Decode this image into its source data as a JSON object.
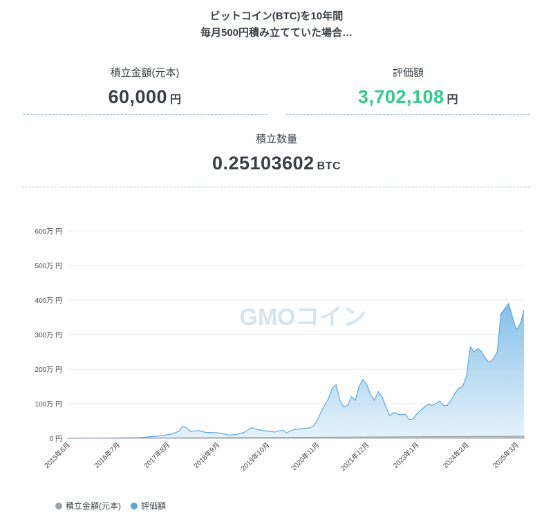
{
  "headline": {
    "line1": "ビットコイン(BTC)を10年間",
    "line2": "毎月500円積み立てていた場合…"
  },
  "stats": {
    "principal": {
      "label": "積立金額(元本)",
      "value": "60,000",
      "unit": "円"
    },
    "valuation": {
      "label": "評価額",
      "value": "3,702,108",
      "unit": "円"
    },
    "quantity": {
      "label": "積立数量",
      "value": "0.25103602",
      "unit": "BTC"
    }
  },
  "watermark": "GMOコイン",
  "colors": {
    "principal": "#9aa3ab",
    "valuation": "#5aa7e0",
    "valuation_fill_top": "#7fbde9",
    "valuation_fill_bottom": "#e3f0fa",
    "highlight": "#2ecc8a"
  },
  "chart_data": {
    "type": "area",
    "title": "",
    "xlabel": "",
    "ylabel": "",
    "ylim": [
      0,
      6000000
    ],
    "y_ticks": [
      {
        "value": 0,
        "label": "0 円"
      },
      {
        "value": 1000000,
        "label": "100万 円"
      },
      {
        "value": 2000000,
        "label": "200万 円"
      },
      {
        "value": 3000000,
        "label": "300万 円"
      },
      {
        "value": 4000000,
        "label": "400万 円"
      },
      {
        "value": 5000000,
        "label": "500万 円"
      },
      {
        "value": 6000000,
        "label": "600万 円"
      }
    ],
    "x_range": [
      "2015-06",
      "2025-05"
    ],
    "x_ticks": [
      {
        "date": "2015-06",
        "label": "2015年6月"
      },
      {
        "date": "2016-07",
        "label": "2016年7月"
      },
      {
        "date": "2017-08",
        "label": "2017年8月"
      },
      {
        "date": "2018-09",
        "label": "2018年9月"
      },
      {
        "date": "2019-10",
        "label": "2019年10月"
      },
      {
        "date": "2020-11",
        "label": "2020年11月"
      },
      {
        "date": "2021-12",
        "label": "2021年12月"
      },
      {
        "date": "2023-01",
        "label": "2023年1月"
      },
      {
        "date": "2024-02",
        "label": "2024年2月"
      },
      {
        "date": "2025-03",
        "label": "2025年3月"
      }
    ],
    "grid": true,
    "legend_position": "bottom-left",
    "series": [
      {
        "name": "積立金額(元本)",
        "points": [
          [
            "2015-06",
            500
          ],
          [
            "2025-05",
            60000
          ]
        ]
      },
      {
        "name": "評価額",
        "points": [
          [
            "2015-06",
            500
          ],
          [
            "2016-01",
            4000
          ],
          [
            "2016-07",
            10000
          ],
          [
            "2017-01",
            20000
          ],
          [
            "2017-06",
            70000
          ],
          [
            "2017-09",
            120000
          ],
          [
            "2017-11",
            200000
          ],
          [
            "2017-12",
            350000
          ],
          [
            "2018-01",
            300000
          ],
          [
            "2018-02",
            200000
          ],
          [
            "2018-04",
            220000
          ],
          [
            "2018-06",
            170000
          ],
          [
            "2018-09",
            160000
          ],
          [
            "2018-11",
            120000
          ],
          [
            "2018-12",
            90000
          ],
          [
            "2019-02",
            110000
          ],
          [
            "2019-04",
            170000
          ],
          [
            "2019-06",
            310000
          ],
          [
            "2019-07",
            270000
          ],
          [
            "2019-09",
            220000
          ],
          [
            "2019-10",
            210000
          ],
          [
            "2019-12",
            180000
          ],
          [
            "2020-02",
            240000
          ],
          [
            "2020-03",
            160000
          ],
          [
            "2020-05",
            250000
          ],
          [
            "2020-07",
            280000
          ],
          [
            "2020-09",
            300000
          ],
          [
            "2020-10",
            350000
          ],
          [
            "2020-11",
            500000
          ],
          [
            "2020-12",
            750000
          ],
          [
            "2021-01",
            950000
          ],
          [
            "2021-02",
            1150000
          ],
          [
            "2021-03",
            1450000
          ],
          [
            "2021-04",
            1550000
          ],
          [
            "2021-05",
            1100000
          ],
          [
            "2021-06",
            900000
          ],
          [
            "2021-07",
            950000
          ],
          [
            "2021-08",
            1200000
          ],
          [
            "2021-09",
            1100000
          ],
          [
            "2021-10",
            1500000
          ],
          [
            "2021-11",
            1700000
          ],
          [
            "2021-12",
            1550000
          ],
          [
            "2022-01",
            1250000
          ],
          [
            "2022-02",
            1100000
          ],
          [
            "2022-03",
            1350000
          ],
          [
            "2022-04",
            1200000
          ],
          [
            "2022-05",
            900000
          ],
          [
            "2022-06",
            650000
          ],
          [
            "2022-07",
            750000
          ],
          [
            "2022-08",
            700000
          ],
          [
            "2022-09",
            680000
          ],
          [
            "2022-10",
            700000
          ],
          [
            "2022-11",
            550000
          ],
          [
            "2022-12",
            550000
          ],
          [
            "2023-01",
            700000
          ],
          [
            "2023-02",
            800000
          ],
          [
            "2023-03",
            900000
          ],
          [
            "2023-04",
            980000
          ],
          [
            "2023-05",
            950000
          ],
          [
            "2023-06",
            1000000
          ],
          [
            "2023-07",
            1080000
          ],
          [
            "2023-08",
            950000
          ],
          [
            "2023-09",
            950000
          ],
          [
            "2023-10",
            1100000
          ],
          [
            "2023-11",
            1300000
          ],
          [
            "2023-12",
            1450000
          ],
          [
            "2024-01",
            1500000
          ],
          [
            "2024-02",
            1800000
          ],
          [
            "2024-03",
            2650000
          ],
          [
            "2024-04",
            2500000
          ],
          [
            "2024-05",
            2600000
          ],
          [
            "2024-06",
            2500000
          ],
          [
            "2024-07",
            2300000
          ],
          [
            "2024-08",
            2200000
          ],
          [
            "2024-09",
            2300000
          ],
          [
            "2024-10",
            2500000
          ],
          [
            "2024-11",
            3600000
          ],
          [
            "2024-12",
            3750000
          ],
          [
            "2025-01",
            3900000
          ],
          [
            "2025-02",
            3500000
          ],
          [
            "2025-03",
            3150000
          ],
          [
            "2025-04",
            3300000
          ],
          [
            "2025-05",
            3702108
          ]
        ]
      }
    ]
  }
}
